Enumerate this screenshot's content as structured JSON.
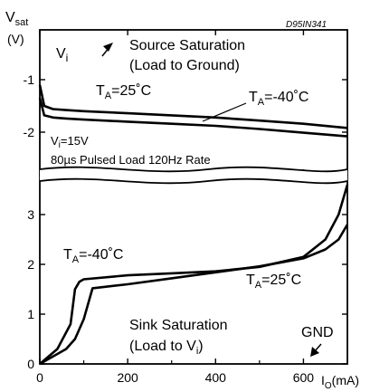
{
  "chart_data": [
    {
      "type": "line",
      "name": "Source Saturation (Load to Ground)",
      "ylabel": "Vsat (V)",
      "ylabel_main": "V",
      "ylabel_sub": "sat",
      "ylabel_unit": "(V)",
      "y_ticks": [
        "-1",
        "-2"
      ],
      "ylim": [
        -2.3,
        -0.8
      ],
      "annotations": {
        "code": "D95IN341",
        "title_line1": "Source Saturation",
        "title_line2": "(Load to Ground)",
        "vi_label": "V",
        "vi_sub": "i",
        "label_25": "T",
        "label_25_sub": "A",
        "label_25_val": "=25˚C",
        "label_m40": "T",
        "label_m40_sub": "A",
        "label_m40_val": "=-40˚C",
        "cond_line1_main": "V",
        "cond_line1_sub": "i",
        "cond_line1_rest": "=15V",
        "cond_line2": "80µs Pulsed Load 120Hz Rate"
      },
      "series": [
        {
          "name": "TA=25˚C",
          "x": [
            0,
            10,
            30,
            60,
            100,
            200,
            300,
            400,
            500,
            600,
            700
          ],
          "y": [
            -1.1,
            -1.5,
            -1.56,
            -1.58,
            -1.6,
            -1.64,
            -1.68,
            -1.72,
            -1.78,
            -1.84,
            -1.92
          ]
        },
        {
          "name": "TA=-40˚C",
          "x": [
            0,
            10,
            30,
            60,
            100,
            200,
            300,
            400,
            500,
            600,
            700
          ],
          "y": [
            -1.35,
            -1.68,
            -1.72,
            -1.74,
            -1.76,
            -1.8,
            -1.84,
            -1.88,
            -1.94,
            -2.01,
            -2.08
          ]
        }
      ]
    },
    {
      "type": "line",
      "name": "Sink Saturation (Load to Vi)",
      "xlabel": "IO(mA)",
      "xlabel_main": "I",
      "xlabel_sub": "O",
      "xlabel_unit": "(mA)",
      "x_ticks": [
        "0",
        "200",
        "400",
        "600"
      ],
      "xlim": [
        0,
        700
      ],
      "y_ticks": [
        "0",
        "1",
        "2",
        "3"
      ],
      "ylim": [
        0,
        3.6
      ],
      "annotations": {
        "title_line1": "Sink Saturation",
        "title_line2_main": "(Load to V",
        "title_line2_sub": "i",
        "title_line2_end": ")",
        "gnd": "GND",
        "label_m40": "T",
        "label_m40_sub": "A",
        "label_m40_val": "=-40˚C",
        "label_25": "T",
        "label_25_sub": "A",
        "label_25_val": "=25˚C"
      },
      "series": [
        {
          "name": "TA=-40˚C",
          "x": [
            0,
            40,
            70,
            80,
            90,
            100,
            200,
            300,
            400,
            500,
            600,
            650,
            680,
            700
          ],
          "y": [
            0,
            0.3,
            0.8,
            1.5,
            1.65,
            1.7,
            1.78,
            1.82,
            1.86,
            1.95,
            2.15,
            2.5,
            3.0,
            3.6
          ]
        },
        {
          "name": "TA=25˚C",
          "x": [
            0,
            60,
            80,
            100,
            120,
            200,
            300,
            400,
            500,
            550,
            600,
            650,
            680,
            700
          ],
          "y": [
            0,
            0.3,
            0.5,
            0.9,
            1.52,
            1.6,
            1.72,
            1.84,
            1.96,
            2.04,
            2.12,
            2.3,
            2.5,
            2.8
          ]
        }
      ]
    }
  ]
}
